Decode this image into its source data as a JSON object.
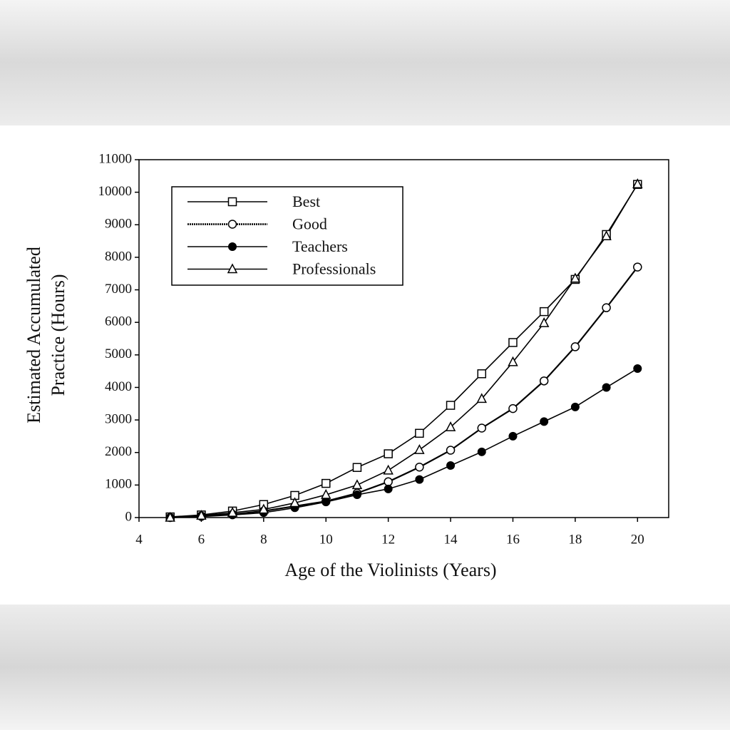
{
  "chart_data": {
    "type": "line",
    "xlabel": "Age of the Violinists (Years)",
    "ylabel": [
      "Estimated Accumulated",
      "Practice (Hours)"
    ],
    "x": [
      5,
      6,
      7,
      8,
      9,
      10,
      11,
      12,
      13,
      14,
      15,
      16,
      17,
      18,
      19,
      20
    ],
    "series": [
      {
        "name": "Best",
        "color": "#000000",
        "marker": "square",
        "values": [
          20,
          80,
          200,
          400,
          680,
          1050,
          1540,
          1960,
          2590,
          3450,
          4420,
          5380,
          6330,
          7320,
          8700,
          10240
        ]
      },
      {
        "name": "Good",
        "color": "#000000",
        "marker": "circle",
        "values": [
          0,
          50,
          100,
          200,
          350,
          500,
          750,
          1100,
          1550,
          2070,
          2750,
          3350,
          4200,
          5250,
          6450,
          7700
        ]
      },
      {
        "name": "Teachers",
        "color": "#000000",
        "marker": "filled-circle",
        "values": [
          0,
          30,
          80,
          150,
          300,
          480,
          700,
          880,
          1170,
          1600,
          2020,
          2500,
          2950,
          3400,
          4000,
          4580
        ]
      },
      {
        "name": "Professionals",
        "color": "#000000",
        "marker": "triangle",
        "values": [
          0,
          60,
          150,
          250,
          450,
          700,
          1000,
          1450,
          2080,
          2780,
          3650,
          4780,
          5980,
          7350,
          8650,
          10250
        ]
      }
    ],
    "xlim": [
      4,
      21
    ],
    "xticks": [
      4,
      6,
      8,
      10,
      12,
      14,
      16,
      18,
      20
    ],
    "ylim": [
      0,
      11000
    ],
    "yticks": [
      0,
      1000,
      2000,
      3000,
      4000,
      5000,
      6000,
      7000,
      8000,
      9000,
      10000,
      11000
    ],
    "legend": "upper left"
  }
}
